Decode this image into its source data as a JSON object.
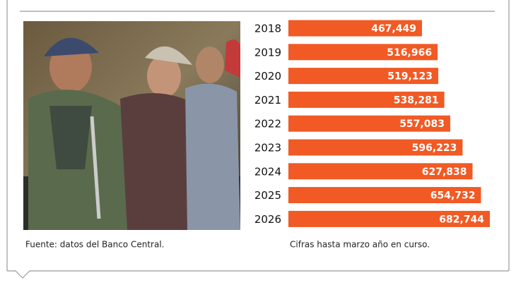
{
  "chart_data": {
    "type": "bar",
    "orientation": "horizontal",
    "categories": [
      "2018",
      "2019",
      "2020",
      "2021",
      "2022",
      "2023",
      "2024",
      "2025",
      "2026"
    ],
    "values": [
      467449,
      516966,
      519123,
      538281,
      557083,
      596223,
      627838,
      654732,
      682744
    ],
    "value_labels": [
      "467,449",
      "516,966",
      "519,123",
      "538,281",
      "557,083",
      "596,223",
      "627,838",
      "654,732",
      "682,744"
    ],
    "color": "#f15a24",
    "source": "Fuente: datos del Banco Central.",
    "note": "Cifras hasta marzo año en curso."
  }
}
